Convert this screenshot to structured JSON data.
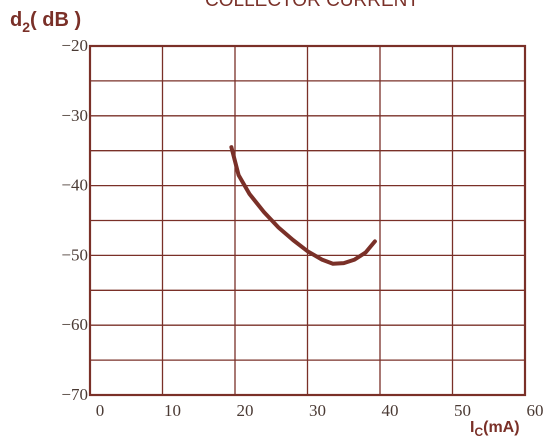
{
  "chart_data": {
    "type": "line",
    "title": "COLLECTOR CURRENT",
    "ylabel": {
      "main": "d",
      "sub": "2",
      "unit": "( dB )"
    },
    "xlabel": {
      "main": "I",
      "sub": "C",
      "unit": "(mA)"
    },
    "xlim": [
      0,
      60
    ],
    "ylim": [
      -70,
      -20
    ],
    "x_ticks": [
      "0",
      "10",
      "20",
      "30",
      "40",
      "50",
      "60"
    ],
    "y_ticks": [
      "-20",
      "-30",
      "-40",
      "-50",
      "-60",
      "-70"
    ],
    "x_grid_step": 10,
    "y_grid_step": 5,
    "grid": true,
    "colors": {
      "line": "#7a3028",
      "grid": "#7a3028",
      "text": "#7a3028"
    },
    "series": [
      {
        "x": [
          19.5,
          20.5,
          22,
          24,
          26,
          28,
          30,
          32,
          33.5,
          35,
          36.5,
          38,
          39.3
        ],
        "y": [
          -34.5,
          -38.5,
          -41.2,
          -43.8,
          -46,
          -47.8,
          -49.4,
          -50.6,
          -51.2,
          -51.1,
          -50.6,
          -49.6,
          -48
        ]
      }
    ]
  }
}
